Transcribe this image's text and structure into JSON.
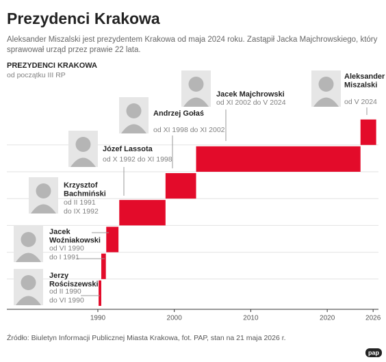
{
  "chart_data": {
    "type": "timeline",
    "title": "Prezydenci Krakowa",
    "subtitle_lines": [
      "Aleksander Miszalski jest prezydentem Krakowa od maja 2024 roku. Zastąpił Jacka Majchrowskiego, który",
      "sprawował urząd przez prawie 22 lata."
    ],
    "chart_title": "PREZYDENCI KRAKOWA",
    "chart_subtitle": "od początku III RP",
    "color": "#e30b2a",
    "xlim": [
      1978.1,
      2026.7
    ],
    "xticks": [
      1990,
      2000,
      2010,
      2020,
      2026
    ],
    "tasks": [
      {
        "name_lines": [
          "Jerzy",
          "Rościszewski"
        ],
        "term_lines": [
          "od II 1990",
          "do VI 1990"
        ],
        "start": 1990.1,
        "end": 1990.45
      },
      {
        "name_lines": [
          "Jacek",
          "Woźniakowski"
        ],
        "term_lines": [
          "od VI 1990",
          "do I 1991"
        ],
        "start": 1990.45,
        "end": 1991.05
      },
      {
        "name_lines": [
          "Krzysztof",
          "Bachmiński"
        ],
        "term_lines": [
          "od II 1991",
          "do IX 1992"
        ],
        "start": 1991.1,
        "end": 1992.7
      },
      {
        "name_lines": [
          "Józef Lassota"
        ],
        "term_lines": [
          "od X 1992 do XI 1998"
        ],
        "start": 1992.8,
        "end": 1998.85
      },
      {
        "name_lines": [
          "Andrzej Gołaś"
        ],
        "term_lines": [
          "od XI 1998 do XI 2002"
        ],
        "start": 1998.85,
        "end": 2002.85
      },
      {
        "name_lines": [
          "Jacek Majchrowski"
        ],
        "term_lines": [
          "od XI 2002 do V 2024"
        ],
        "start": 2002.85,
        "end": 2024.35
      },
      {
        "name_lines": [
          "Aleksander",
          "Miszalski"
        ],
        "term_lines": [
          "od V 2024"
        ],
        "start": 2024.35,
        "end": 2026.4
      }
    ],
    "source": "Źródło: Biuletyn Informacji Publicznej Miasta Krakowa, fot. PAP, stan na 21 maja 2026 r.",
    "logo": "pap"
  }
}
